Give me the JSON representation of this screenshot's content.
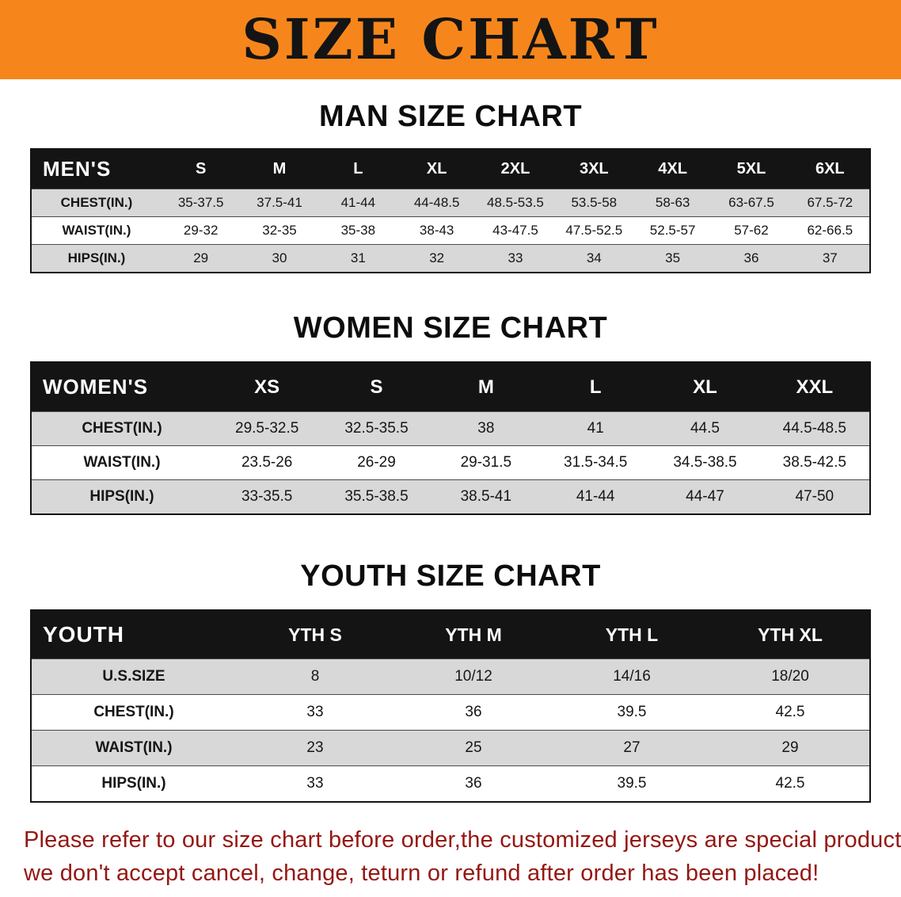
{
  "banner": {
    "title": "SIZE CHART",
    "bg_color": "#f6861c",
    "text_color": "#141414"
  },
  "sections": [
    {
      "heading": "MAN SIZE CHART",
      "table": {
        "header": [
          "MEN'S",
          "S",
          "M",
          "L",
          "XL",
          "2XL",
          "3XL",
          "4XL",
          "5XL",
          "6XL"
        ],
        "rows": [
          [
            "CHEST(IN.)",
            "35-37.5",
            "37.5-41",
            "41-44",
            "44-48.5",
            "48.5-53.5",
            "53.5-58",
            "58-63",
            "63-67.5",
            "67.5-72"
          ],
          [
            "WAIST(IN.)",
            "29-32",
            "32-35",
            "35-38",
            "38-43",
            "43-47.5",
            "47.5-52.5",
            "52.5-57",
            "57-62",
            "62-66.5"
          ],
          [
            "HIPS(IN.)",
            "29",
            "30",
            "31",
            "32",
            "33",
            "34",
            "35",
            "36",
            "37"
          ]
        ]
      }
    },
    {
      "heading": "WOMEN SIZE CHART",
      "table": {
        "header": [
          "WOMEN'S",
          "XS",
          "S",
          "M",
          "L",
          "XL",
          "XXL"
        ],
        "rows": [
          [
            "CHEST(IN.)",
            "29.5-32.5",
            "32.5-35.5",
            "38",
            "41",
            "44.5",
            "44.5-48.5"
          ],
          [
            "WAIST(IN.)",
            "23.5-26",
            "26-29",
            "29-31.5",
            "31.5-34.5",
            "34.5-38.5",
            "38.5-42.5"
          ],
          [
            "HIPS(IN.)",
            "33-35.5",
            "35.5-38.5",
            "38.5-41",
            "41-44",
            "44-47",
            "47-50"
          ]
        ]
      }
    },
    {
      "heading": "YOUTH SIZE CHART",
      "table": {
        "header": [
          "YOUTH",
          "YTH S",
          "YTH M",
          "YTH L",
          "YTH XL"
        ],
        "rows": [
          [
            "U.S.SIZE",
            "8",
            "10/12",
            "14/16",
            "18/20"
          ],
          [
            "CHEST(IN.)",
            "33",
            "36",
            "39.5",
            "42.5"
          ],
          [
            "WAIST(IN.)",
            "23",
            "25",
            "27",
            "29"
          ],
          [
            "HIPS(IN.)",
            "33",
            "36",
            "39.5",
            "42.5"
          ]
        ]
      }
    }
  ],
  "footer": {
    "line1": "Please refer to our size chart before order,the customized jerseys are special products,",
    "line2": "we don't accept cancel, change, teturn or refund after order has been placed!",
    "text_color": "#951712"
  }
}
